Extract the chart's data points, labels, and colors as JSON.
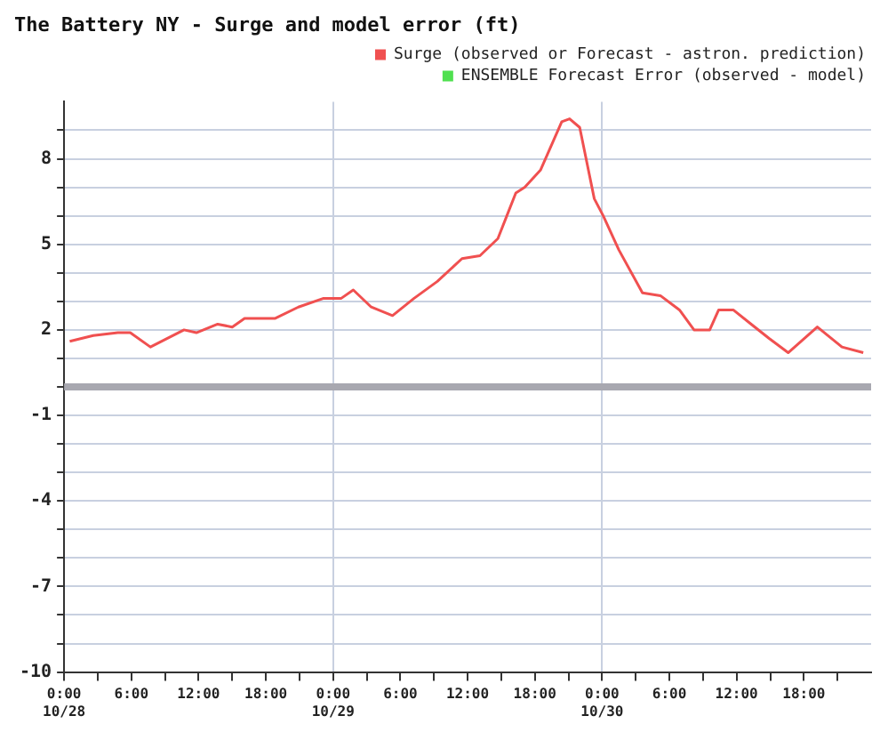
{
  "chart_data": {
    "type": "line",
    "title": "The Battery NY - Surge and model error (ft)",
    "xlim": [
      "--10-28T00:00",
      "--10-31T00:00"
    ],
    "xticks": [
      {
        "value": "--10-28T00:00",
        "label": "0:00\n10/28"
      },
      {
        "value": "--10-28T03:00",
        "label": null
      },
      {
        "value": "--10-28T06:00",
        "label": "6:00"
      },
      {
        "value": "--10-28T09:00",
        "label": null
      },
      {
        "value": "--10-28T12:00",
        "label": "12:00"
      },
      {
        "value": "--10-28T15:00",
        "label": null
      },
      {
        "value": "--10-28T18:00",
        "label": "18:00"
      },
      {
        "value": "--10-28T21:00",
        "label": null
      },
      {
        "value": "--10-29T00:00",
        "label": "0:00\n10/29"
      },
      {
        "value": "--10-29T03:00",
        "label": null
      },
      {
        "value": "--10-29T06:00",
        "label": "6:00"
      },
      {
        "value": "--10-29T09:00",
        "label": null
      },
      {
        "value": "--10-29T12:00",
        "label": "12:00"
      },
      {
        "value": "--10-29T15:00",
        "label": null
      },
      {
        "value": "--10-29T18:00",
        "label": "18:00"
      },
      {
        "value": "--10-29T21:00",
        "label": null
      },
      {
        "value": "--10-30T00:00",
        "label": "0:00\n10/30"
      },
      {
        "value": "--10-30T03:00",
        "label": null
      },
      {
        "value": "--10-30T06:00",
        "label": "6:00"
      },
      {
        "value": "--10-30T09:00",
        "label": null
      },
      {
        "value": "--10-30T12:00",
        "label": "12:00"
      },
      {
        "value": "--10-30T15:00",
        "label": null
      },
      {
        "value": "--10-30T18:00",
        "label": "18:00"
      },
      {
        "value": "--10-30T21:00",
        "label": null
      }
    ],
    "ylim": [
      -10,
      10
    ],
    "yticks": [
      {
        "value": -10,
        "label": "-10"
      },
      {
        "value": -9,
        "label": null
      },
      {
        "value": -8,
        "label": null
      },
      {
        "value": -7,
        "label": "-7"
      },
      {
        "value": -6,
        "label": null
      },
      {
        "value": -5,
        "label": null
      },
      {
        "value": -4,
        "label": "-4"
      },
      {
        "value": -3,
        "label": null
      },
      {
        "value": -2,
        "label": null
      },
      {
        "value": -1,
        "label": "-1"
      },
      {
        "value": 0,
        "label": null
      },
      {
        "value": 1,
        "label": null
      },
      {
        "value": 2,
        "label": "2"
      },
      {
        "value": 3,
        "label": null
      },
      {
        "value": 4,
        "label": null
      },
      {
        "value": 5,
        "label": "5"
      },
      {
        "value": 6,
        "label": null
      },
      {
        "value": 7,
        "label": null
      },
      {
        "value": 8,
        "label": "8"
      },
      {
        "value": 9,
        "label": null
      }
    ],
    "grid": true,
    "legend": "top right",
    "marker": "none",
    "ref_lines": [
      {
        "axis": "y",
        "value": 0,
        "color": "#a8a8b0"
      }
    ],
    "series": [
      {
        "name": "Surge (observed or Forecast - astron. prediction)",
        "color": "#f05050",
        "x": [
          "--10-28T00:30",
          "--10-28T02:36",
          "--10-28T04:48",
          "--10-28T05:54",
          "--10-28T07:42",
          "--10-28T10:42",
          "--10-28T11:48",
          "--10-28T13:42",
          "--10-28T15:00",
          "--10-28T16:06",
          "--10-28T18:48",
          "--10-28T20:54",
          "--10-28T23:06",
          "--10-29T00:42",
          "--10-29T01:48",
          "--10-29T03:24",
          "--10-29T05:18",
          "--10-29T07:12",
          "--10-29T09:18",
          "--10-29T11:30",
          "--10-29T13:06",
          "--10-29T14:42",
          "--10-29T15:30",
          "--10-29T16:18",
          "--10-29T17:06",
          "--10-29T18:30",
          "--10-29T20:24",
          "--10-29T21:06",
          "--10-29T22:00",
          "--10-29T23:18",
          "--10-30T00:06",
          "--10-30T01:30",
          "--10-30T03:36",
          "--10-30T05:12",
          "--10-30T06:54",
          "--10-30T08:12",
          "--10-30T09:36",
          "--10-30T10:24",
          "--10-30T11:42",
          "--10-30T13:18",
          "--10-30T14:54",
          "--10-30T16:36",
          "--10-30T19:12",
          "--10-30T21:24",
          "--10-30T23:18"
        ],
        "values": [
          1.6,
          1.8,
          1.9,
          1.9,
          1.4,
          2.0,
          1.9,
          2.2,
          2.1,
          2.4,
          2.4,
          2.8,
          3.1,
          3.1,
          3.4,
          2.8,
          2.5,
          3.1,
          3.7,
          4.5,
          4.6,
          5.2,
          6.0,
          6.8,
          7.0,
          7.6,
          9.3,
          9.4,
          9.1,
          6.6,
          6.0,
          4.8,
          3.3,
          3.2,
          2.7,
          2.0,
          2.0,
          2.7,
          2.7,
          2.2,
          1.7,
          1.2,
          2.1,
          1.4,
          1.2
        ]
      },
      {
        "name": "ENSEMBLE Forecast Error (observed - model)",
        "color": "#50e050"
      }
    ]
  }
}
